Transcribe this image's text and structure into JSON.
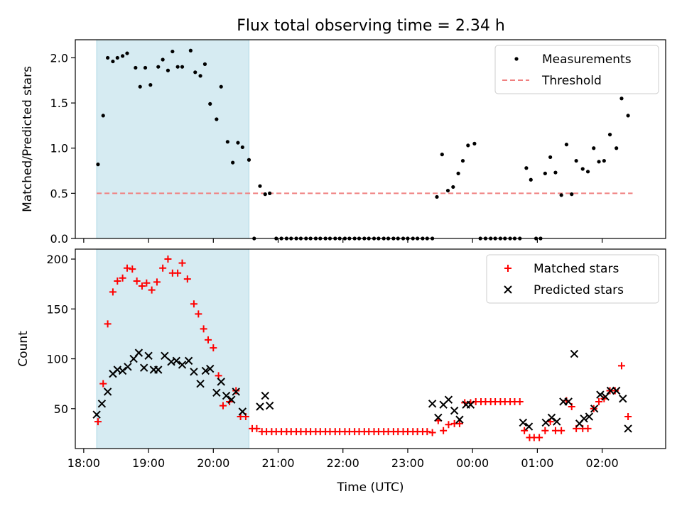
{
  "title": "Flux total observing time = 2.34 h",
  "colors": {
    "matched": "#ff0000",
    "predicted": "#000000",
    "threshold": "#f08080",
    "shade": "#add8e6",
    "measurements": "#000000"
  },
  "chart_data": [
    {
      "type": "scatter",
      "panel": "top",
      "xlabel": "",
      "ylabel": "Matched/Predicted stars",
      "ylim": [
        0,
        2.2
      ],
      "yticks": [
        "0.0",
        "0.5",
        "1.0",
        "1.5",
        "2.0"
      ],
      "xlim": [
        17.87,
        26.98
      ],
      "shaded_range": [
        18.2,
        20.55
      ],
      "legend_position": "top-right",
      "legend": [
        "Measurements",
        "Threshold"
      ],
      "threshold": {
        "name": "Threshold",
        "value": 0.5,
        "x_range": [
          18.2,
          26.47
        ]
      },
      "series": [
        {
          "name": "Measurements",
          "marker": "dot",
          "points": [
            [
              18.22,
              0.82
            ],
            [
              18.3,
              1.36
            ],
            [
              18.37,
              2.0
            ],
            [
              18.45,
              1.96
            ],
            [
              18.52,
              2.0
            ],
            [
              18.6,
              2.02
            ],
            [
              18.67,
              2.05
            ],
            [
              18.8,
              1.89
            ],
            [
              18.87,
              1.68
            ],
            [
              18.95,
              1.89
            ],
            [
              19.03,
              1.7
            ],
            [
              19.15,
              1.9
            ],
            [
              19.22,
              1.98
            ],
            [
              19.3,
              1.86
            ],
            [
              19.37,
              2.07
            ],
            [
              19.45,
              1.9
            ],
            [
              19.52,
              1.9
            ],
            [
              19.65,
              2.08
            ],
            [
              19.72,
              1.84
            ],
            [
              19.8,
              1.8
            ],
            [
              19.87,
              1.93
            ],
            [
              19.95,
              1.49
            ],
            [
              20.05,
              1.32
            ],
            [
              20.12,
              1.68
            ],
            [
              20.22,
              1.07
            ],
            [
              20.3,
              0.84
            ],
            [
              20.38,
              1.06
            ],
            [
              20.45,
              1.01
            ],
            [
              20.55,
              0.87
            ],
            [
              20.63,
              0.0
            ],
            [
              20.72,
              0.58
            ],
            [
              20.8,
              0.49
            ],
            [
              20.87,
              0.5
            ],
            [
              20.97,
              0.0
            ],
            [
              21.05,
              0.0
            ],
            [
              21.13,
              0.0
            ],
            [
              21.2,
              0.0
            ],
            [
              21.28,
              0.0
            ],
            [
              21.35,
              0.0
            ],
            [
              21.43,
              0.0
            ],
            [
              21.5,
              0.0
            ],
            [
              21.58,
              0.0
            ],
            [
              21.65,
              0.0
            ],
            [
              21.73,
              0.0
            ],
            [
              21.8,
              0.0
            ],
            [
              21.88,
              0.0
            ],
            [
              21.95,
              0.0
            ],
            [
              22.03,
              0.0
            ],
            [
              22.1,
              0.0
            ],
            [
              22.18,
              0.0
            ],
            [
              22.25,
              0.0
            ],
            [
              22.33,
              0.0
            ],
            [
              22.4,
              0.0
            ],
            [
              22.48,
              0.0
            ],
            [
              22.55,
              0.0
            ],
            [
              22.63,
              0.0
            ],
            [
              22.7,
              0.0
            ],
            [
              22.78,
              0.0
            ],
            [
              22.85,
              0.0
            ],
            [
              22.93,
              0.0
            ],
            [
              23.0,
              0.0
            ],
            [
              23.08,
              0.0
            ],
            [
              23.15,
              0.0
            ],
            [
              23.23,
              0.0
            ],
            [
              23.3,
              0.0
            ],
            [
              23.38,
              0.0
            ],
            [
              23.45,
              0.46
            ],
            [
              23.53,
              0.93
            ],
            [
              23.62,
              0.53
            ],
            [
              23.7,
              0.57
            ],
            [
              23.78,
              0.72
            ],
            [
              23.85,
              0.86
            ],
            [
              23.93,
              1.03
            ],
            [
              24.03,
              1.05
            ],
            [
              24.12,
              0.0
            ],
            [
              24.2,
              0.0
            ],
            [
              24.28,
              0.0
            ],
            [
              24.35,
              0.0
            ],
            [
              24.43,
              0.0
            ],
            [
              24.5,
              0.0
            ],
            [
              24.58,
              0.0
            ],
            [
              24.65,
              0.0
            ],
            [
              24.73,
              0.0
            ],
            [
              24.83,
              0.78
            ],
            [
              24.9,
              0.65
            ],
            [
              24.98,
              0.0
            ],
            [
              25.05,
              0.0
            ],
            [
              25.12,
              0.72
            ],
            [
              25.2,
              0.9
            ],
            [
              25.28,
              0.73
            ],
            [
              25.37,
              0.48
            ],
            [
              25.45,
              1.04
            ],
            [
              25.53,
              0.49
            ],
            [
              25.6,
              0.86
            ],
            [
              25.7,
              0.77
            ],
            [
              25.78,
              0.74
            ],
            [
              25.87,
              1.0
            ],
            [
              25.95,
              0.85
            ],
            [
              26.03,
              0.86
            ],
            [
              26.12,
              1.15
            ],
            [
              26.22,
              1.0
            ],
            [
              26.3,
              1.55
            ],
            [
              26.4,
              1.36
            ]
          ]
        }
      ]
    },
    {
      "type": "scatter",
      "panel": "bottom",
      "xlabel": "Time (UTC)",
      "ylabel": "Count",
      "ylim": [
        10,
        210
      ],
      "yticks": [
        "50",
        "100",
        "150",
        "200"
      ],
      "xlim": [
        17.87,
        26.98
      ],
      "xticks": [
        "18:00",
        "19:00",
        "20:00",
        "21:00",
        "22:00",
        "23:00",
        "00:00",
        "01:00",
        "02:00"
      ],
      "shaded_range": [
        18.2,
        20.55
      ],
      "legend_position": "top-right",
      "legend": [
        "Matched stars",
        "Predicted stars"
      ],
      "series": [
        {
          "name": "Matched stars",
          "marker": "plus",
          "points": [
            [
              18.22,
              37
            ],
            [
              18.3,
              75
            ],
            [
              18.37,
              135
            ],
            [
              18.45,
              167
            ],
            [
              18.52,
              178
            ],
            [
              18.6,
              181
            ],
            [
              18.67,
              191
            ],
            [
              18.75,
              190
            ],
            [
              18.82,
              178
            ],
            [
              18.9,
              173
            ],
            [
              18.97,
              176
            ],
            [
              19.05,
              169
            ],
            [
              19.13,
              177
            ],
            [
              19.22,
              191
            ],
            [
              19.3,
              200
            ],
            [
              19.37,
              186
            ],
            [
              19.45,
              186
            ],
            [
              19.52,
              196
            ],
            [
              19.6,
              180
            ],
            [
              19.7,
              155
            ],
            [
              19.77,
              145
            ],
            [
              19.85,
              130
            ],
            [
              19.92,
              119
            ],
            [
              20.0,
              111
            ],
            [
              20.08,
              83
            ],
            [
              20.15,
              53
            ],
            [
              20.25,
              57
            ],
            [
              20.35,
              68
            ],
            [
              20.42,
              42
            ],
            [
              20.5,
              42
            ],
            [
              20.6,
              30
            ],
            [
              20.67,
              30
            ],
            [
              20.75,
              27
            ],
            [
              20.82,
              27
            ],
            [
              20.9,
              27
            ],
            [
              20.97,
              27
            ],
            [
              21.05,
              27
            ],
            [
              21.13,
              27
            ],
            [
              21.2,
              27
            ],
            [
              21.28,
              27
            ],
            [
              21.35,
              27
            ],
            [
              21.43,
              27
            ],
            [
              21.5,
              27
            ],
            [
              21.58,
              27
            ],
            [
              21.65,
              27
            ],
            [
              21.73,
              27
            ],
            [
              21.8,
              27
            ],
            [
              21.88,
              27
            ],
            [
              21.95,
              27
            ],
            [
              22.03,
              27
            ],
            [
              22.1,
              27
            ],
            [
              22.18,
              27
            ],
            [
              22.25,
              27
            ],
            [
              22.33,
              27
            ],
            [
              22.4,
              27
            ],
            [
              22.48,
              27
            ],
            [
              22.55,
              27
            ],
            [
              22.63,
              27
            ],
            [
              22.7,
              27
            ],
            [
              22.78,
              27
            ],
            [
              22.85,
              27
            ],
            [
              22.93,
              27
            ],
            [
              23.0,
              27
            ],
            [
              23.08,
              27
            ],
            [
              23.15,
              27
            ],
            [
              23.23,
              27
            ],
            [
              23.3,
              27
            ],
            [
              23.38,
              26
            ],
            [
              23.47,
              38
            ],
            [
              23.55,
              28
            ],
            [
              23.63,
              34
            ],
            [
              23.72,
              35
            ],
            [
              23.8,
              35
            ],
            [
              23.88,
              56
            ],
            [
              23.97,
              56
            ],
            [
              24.05,
              57
            ],
            [
              24.13,
              57
            ],
            [
              24.2,
              57
            ],
            [
              24.28,
              57
            ],
            [
              24.35,
              57
            ],
            [
              24.43,
              57
            ],
            [
              24.5,
              57
            ],
            [
              24.58,
              57
            ],
            [
              24.65,
              57
            ],
            [
              24.73,
              57
            ],
            [
              24.8,
              28
            ],
            [
              24.88,
              21
            ],
            [
              24.95,
              21
            ],
            [
              25.03,
              21
            ],
            [
              25.12,
              28
            ],
            [
              25.2,
              37
            ],
            [
              25.28,
              28
            ],
            [
              25.37,
              28
            ],
            [
              25.45,
              58
            ],
            [
              25.53,
              52
            ],
            [
              25.6,
              30
            ],
            [
              25.7,
              30
            ],
            [
              25.78,
              30
            ],
            [
              25.87,
              50
            ],
            [
              25.95,
              57
            ],
            [
              26.03,
              60
            ],
            [
              26.12,
              68
            ],
            [
              26.2,
              68
            ],
            [
              26.3,
              93
            ],
            [
              26.4,
              42
            ]
          ]
        },
        {
          "name": "Predicted stars",
          "marker": "x",
          "points": [
            [
              18.2,
              44
            ],
            [
              18.28,
              55
            ],
            [
              18.37,
              67
            ],
            [
              18.45,
              85
            ],
            [
              18.52,
              89
            ],
            [
              18.6,
              88
            ],
            [
              18.68,
              92
            ],
            [
              18.77,
              100
            ],
            [
              18.85,
              106
            ],
            [
              18.93,
              91
            ],
            [
              19.0,
              103
            ],
            [
              19.08,
              89
            ],
            [
              19.15,
              89
            ],
            [
              19.25,
              103
            ],
            [
              19.35,
              97
            ],
            [
              19.43,
              98
            ],
            [
              19.52,
              94
            ],
            [
              19.62,
              98
            ],
            [
              19.7,
              87
            ],
            [
              19.8,
              75
            ],
            [
              19.88,
              88
            ],
            [
              19.95,
              90
            ],
            [
              20.05,
              66
            ],
            [
              20.12,
              77
            ],
            [
              20.2,
              63
            ],
            [
              20.28,
              59
            ],
            [
              20.35,
              67
            ],
            [
              20.45,
              47
            ],
            [
              20.72,
              52
            ],
            [
              20.8,
              63
            ],
            [
              20.87,
              53
            ],
            [
              23.38,
              55
            ],
            [
              23.47,
              41
            ],
            [
              23.55,
              54
            ],
            [
              23.63,
              59
            ],
            [
              23.72,
              48
            ],
            [
              23.8,
              39
            ],
            [
              23.9,
              54
            ],
            [
              23.97,
              54
            ],
            [
              24.78,
              36
            ],
            [
              24.87,
              32
            ],
            [
              25.13,
              36
            ],
            [
              25.22,
              41
            ],
            [
              25.3,
              37
            ],
            [
              25.4,
              57
            ],
            [
              25.48,
              57
            ],
            [
              25.57,
              105
            ],
            [
              25.65,
              35
            ],
            [
              25.72,
              40
            ],
            [
              25.8,
              42
            ],
            [
              25.88,
              50
            ],
            [
              25.97,
              64
            ],
            [
              26.05,
              62
            ],
            [
              26.13,
              68
            ],
            [
              26.22,
              68
            ],
            [
              26.32,
              60
            ],
            [
              26.4,
              30
            ]
          ]
        }
      ]
    }
  ]
}
